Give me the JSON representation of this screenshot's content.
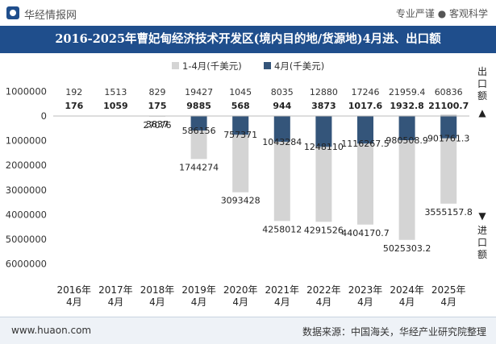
{
  "header": {
    "brand": "华经情报网",
    "slogan": "专业严谨 ● 客观科学"
  },
  "title": "2016-2025年曹妃甸经济技术开发区(境内目的地/货源地)4月进、出口额",
  "footer": {
    "site": "www.huaon.com",
    "source": "数据来源：中国海关，华经产业研究院整理"
  },
  "side_labels": {
    "export": "出口额",
    "import": "进口额",
    "up_arrow": "▲",
    "down_arrow": "▼"
  },
  "colors": {
    "title_bg": "#1f4e8c",
    "cumulative": "#d4d4d4",
    "monthly": "#34557a"
  },
  "chart_data": {
    "type": "bar",
    "categories": [
      "2016年\n4月",
      "2017年\n4月",
      "2018年\n4月",
      "2019年\n4月",
      "2020年\n4月",
      "2021年\n4月",
      "2022年\n4月",
      "2023年\n4月",
      "2024年\n4月",
      "2025年\n4月"
    ],
    "legend_position": "top",
    "ylim": [
      -6000000,
      1000000
    ],
    "yticks": [
      1000000,
      0,
      -1000000,
      -2000000,
      -3000000,
      -4000000,
      -5000000,
      -6000000
    ],
    "ytick_labels": [
      "1000000",
      "0",
      "1000000",
      "2000000",
      "3000000",
      "4000000",
      "5000000",
      "6000000"
    ],
    "series": [
      {
        "name": "1-4月(千美元)",
        "export": [
          192,
          1513,
          829,
          19427,
          1045,
          8035,
          12880,
          17246,
          21959.4,
          60836
        ],
        "import": [
          null,
          null,
          27076,
          1744274,
          3093428,
          4258012,
          4291526,
          4404170.7,
          5025303.2,
          3555157.8
        ],
        "export_labels": [
          "192",
          "1513",
          "829",
          "19427",
          "1045",
          "8035",
          "12880",
          "17246",
          "21959.4",
          "60836"
        ],
        "import_labels": [
          "",
          "",
          "27076",
          "1744274",
          "3093428",
          "4258012",
          "4291526",
          "4404170.7",
          "5025303.2",
          "3555157.8"
        ]
      },
      {
        "name": "4月(千美元)",
        "export": [
          176,
          1059,
          175,
          9885,
          568,
          944,
          3873,
          1017.6,
          1932.8,
          21100.7
        ],
        "import": [
          null,
          null,
          3837,
          586156,
          757371,
          1043284,
          1248110,
          1116267.5,
          980508.9,
          901761.3
        ],
        "export_labels": [
          "176",
          "1059",
          "175",
          "9885",
          "568",
          "944",
          "3873",
          "1017.6",
          "1932.8",
          "21100.7"
        ],
        "import_labels": [
          "",
          "",
          "3837",
          "586156",
          "757371",
          "1043284",
          "1248110",
          "1116267.5",
          "980508.9",
          "901761.3"
        ]
      }
    ]
  }
}
